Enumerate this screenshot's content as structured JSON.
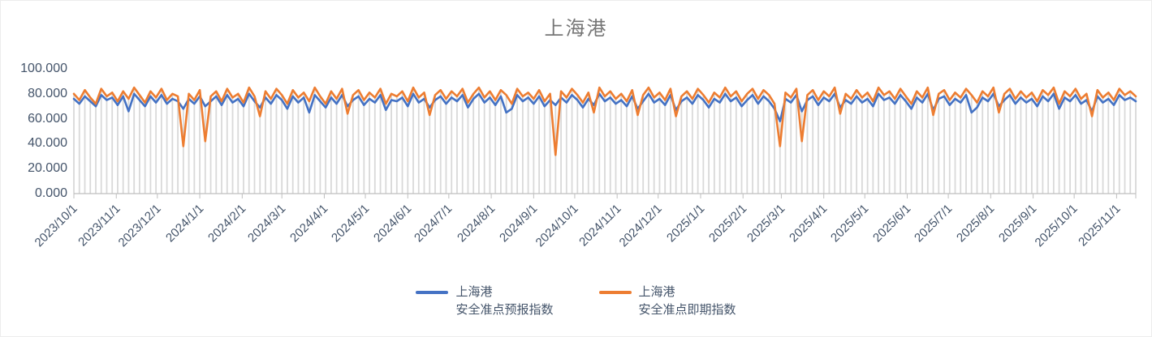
{
  "chart_data": {
    "type": "line",
    "title": "上海港",
    "x_start_date": "2023/10/1",
    "x_step_days": 4,
    "x_tick_labels": [
      "2023/10/1",
      "2023/11/1",
      "2023/12/1",
      "2024/1/1",
      "2024/2/1",
      "2024/3/1",
      "2024/4/1",
      "2024/5/1",
      "2024/6/1",
      "2024/7/1",
      "2024/8/1",
      "2024/9/1",
      "2024/10/1",
      "2024/11/1",
      "2024/12/1",
      "2025/1/1",
      "2025/2/1",
      "2025/3/1",
      "2025/4/1",
      "2025/5/1",
      "2025/6/1",
      "2025/7/1",
      "2025/8/1",
      "2025/9/1",
      "2025/10/1",
      "2025/11/1"
    ],
    "y_tick_labels": [
      "0.000",
      "20.000",
      "40.000",
      "60.000",
      "80.000",
      "100.000"
    ],
    "ylim": [
      0,
      100
    ],
    "grid": "vertical-drop-lines",
    "legend_position": "bottom",
    "colors": {
      "grid_line": "#D9D9D9",
      "axis_line": "#BFBFBF",
      "axis_text": "#44546A",
      "title_text": "#767676"
    },
    "series": [
      {
        "name": "上海港安全准点预报指数",
        "legend_lines": [
          "上海港",
          "安全准点预报指数"
        ],
        "color": "#4472C4",
        "values": [
          76,
          72,
          78,
          74,
          70,
          79,
          75,
          77,
          71,
          78,
          66,
          80,
          75,
          70,
          78,
          73,
          79,
          72,
          76,
          74,
          68,
          76,
          72,
          78,
          70,
          74,
          78,
          71,
          79,
          73,
          76,
          70,
          80,
          74,
          69,
          77,
          72,
          79,
          75,
          68,
          78,
          73,
          77,
          65,
          79,
          74,
          69,
          77,
          72,
          79,
          70,
          75,
          78,
          71,
          76,
          73,
          79,
          67,
          75,
          74,
          77,
          70,
          80,
          73,
          76,
          69,
          75,
          78,
          72,
          77,
          74,
          79,
          69,
          76,
          80,
          73,
          77,
          71,
          78,
          65,
          68,
          79,
          74,
          77,
          72,
          78,
          70,
          75,
          71,
          77,
          73,
          79,
          75,
          69,
          76,
          71,
          80,
          74,
          77,
          72,
          75,
          70,
          78,
          68,
          74,
          80,
          73,
          76,
          71,
          79,
          67,
          74,
          77,
          72,
          79,
          75,
          69,
          76,
          73,
          80,
          74,
          77,
          70,
          75,
          79,
          72,
          78,
          74,
          68,
          58,
          76,
          73,
          79,
          66,
          75,
          78,
          71,
          77,
          74,
          80,
          69,
          75,
          72,
          78,
          73,
          76,
          70,
          80,
          75,
          77,
          72,
          79,
          74,
          68,
          77,
          73,
          80,
          67,
          76,
          78,
          71,
          76,
          73,
          79,
          65,
          69,
          77,
          74,
          80,
          70,
          75,
          79,
          72,
          77,
          73,
          76,
          70,
          78,
          74,
          80,
          68,
          77,
          74,
          79,
          72,
          75,
          66,
          78,
          73,
          76,
          71,
          79,
          75,
          77,
          74
        ]
      },
      {
        "name": "上海港安全准点即期指数",
        "legend_lines": [
          "上海港",
          "安全准点即期指数"
        ],
        "color": "#ED7D31",
        "values": [
          80,
          75,
          83,
          77,
          72,
          84,
          78,
          81,
          74,
          82,
          76,
          85,
          79,
          73,
          82,
          77,
          84,
          75,
          80,
          78,
          38,
          80,
          75,
          83,
          42,
          78,
          82,
          74,
          84,
          77,
          80,
          73,
          85,
          78,
          62,
          82,
          76,
          84,
          79,
          72,
          83,
          77,
          81,
          74,
          85,
          78,
          72,
          82,
          76,
          84,
          64,
          79,
          83,
          75,
          81,
          77,
          84,
          72,
          80,
          78,
          82,
          74,
          85,
          77,
          81,
          63,
          79,
          83,
          76,
          82,
          78,
          84,
          73,
          80,
          85,
          77,
          82,
          75,
          83,
          79,
          72,
          84,
          78,
          81,
          76,
          83,
          74,
          80,
          31,
          82,
          77,
          84,
          79,
          73,
          81,
          65,
          85,
          78,
          82,
          76,
          80,
          74,
          83,
          63,
          79,
          85,
          77,
          81,
          75,
          84,
          62,
          78,
          82,
          76,
          84,
          79,
          73,
          81,
          77,
          85,
          78,
          82,
          74,
          80,
          84,
          76,
          83,
          79,
          72,
          38,
          81,
          77,
          84,
          42,
          79,
          83,
          75,
          82,
          78,
          85,
          64,
          80,
          76,
          83,
          77,
          81,
          74,
          85,
          79,
          82,
          76,
          84,
          78,
          72,
          82,
          77,
          85,
          63,
          80,
          83,
          75,
          81,
          77,
          84,
          79,
          73,
          82,
          78,
          85,
          65,
          80,
          84,
          76,
          82,
          77,
          81,
          74,
          83,
          79,
          85,
          72,
          82,
          78,
          84,
          76,
          80,
          62,
          83,
          77,
          81,
          75,
          84,
          79,
          82,
          78
        ]
      }
    ]
  }
}
